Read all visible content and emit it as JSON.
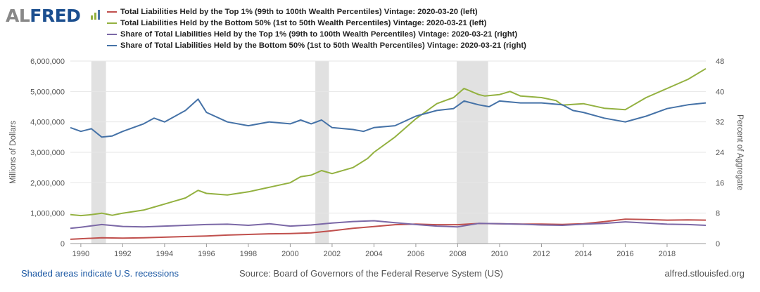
{
  "brand": {
    "logo_prefix": "AL",
    "logo_name": "FRED"
  },
  "legend": [
    {
      "label": "Total Liabilities Held by the Top 1% (99th to 100th Wealth Percentiles) Vintage: 2020-03-20 (left)",
      "color": "#c0504d"
    },
    {
      "label": "Total Liabilities Held by the Bottom 50% (1st to 50th Wealth Percentiles) Vintage: 2020-03-21 (left)",
      "color": "#93b140"
    },
    {
      "label": "Share of Total Liabilities Held by the Top 1% (99th to 100th Wealth Percentiles) Vintage: 2020-03-21 (right)",
      "color": "#7b68a6"
    },
    {
      "label": "Share of Total Liabilities Held by the Bottom 50% (1st to 50th Wealth Percentiles) Vintage: 2020-03-21 (right)",
      "color": "#4572a7"
    }
  ],
  "footer": {
    "recessions_note": "Shaded areas indicate U.S. recessions",
    "source": "Source: Board of Governors of the Federal Reserve System (US)",
    "site": "alfred.stlouisfed.org"
  },
  "chart_data": {
    "type": "line",
    "ylabel_left": "Millions of Dollars",
    "ylabel_right": "Percent of Aggregate",
    "ylim_left": [
      0,
      6000000
    ],
    "ylim_right": [
      0,
      48
    ],
    "yticks_left": [
      "0",
      "1,000,000",
      "2,000,000",
      "3,000,000",
      "4,000,000",
      "5,000,000",
      "6,000,000"
    ],
    "yticks_right": [
      "0",
      "8",
      "16",
      "24",
      "32",
      "40",
      "48"
    ],
    "xlim": [
      1989.5,
      2019.85
    ],
    "xticks": [
      "1990",
      "1992",
      "1994",
      "1996",
      "1998",
      "2000",
      "2002",
      "2004",
      "2006",
      "2008",
      "2010",
      "2012",
      "2014",
      "2016",
      "2018"
    ],
    "grid": true,
    "recessions": [
      [
        1990.5,
        1991.2
      ],
      [
        2001.2,
        2001.85
      ],
      [
        2007.95,
        2009.45
      ]
    ],
    "series": [
      {
        "name": "Total Liabilities Held by the Top 1% (99th to 100th Wealth Percentiles) Vintage: 2020-03-20 (left)",
        "axis": "left",
        "color": "#c0504d",
        "x": [
          1989.5,
          1990,
          1991,
          1992,
          1993,
          1994,
          1995,
          1996,
          1997,
          1998,
          1999,
          2000,
          2001,
          2002,
          2003,
          2004,
          2005,
          2006,
          2007,
          2008,
          2009,
          2010,
          2011,
          2012,
          2013,
          2014,
          2015,
          2016,
          2017,
          2018,
          2019,
          2019.85
        ],
        "y": [
          140000,
          160000,
          190000,
          180000,
          190000,
          210000,
          230000,
          250000,
          280000,
          300000,
          320000,
          330000,
          350000,
          420000,
          500000,
          560000,
          620000,
          640000,
          620000,
          620000,
          660000,
          650000,
          640000,
          640000,
          630000,
          650000,
          720000,
          800000,
          790000,
          770000,
          780000,
          770000
        ]
      },
      {
        "name": "Total Liabilities Held by the Bottom 50% (1st to 50th Wealth Percentiles) Vintage: 2020-03-21 (left)",
        "axis": "left",
        "color": "#93b140",
        "x": [
          1989.5,
          1990,
          1990.5,
          1991,
          1991.5,
          1992,
          1993,
          1993.5,
          1994,
          1995,
          1995.6,
          1996,
          1997,
          1998,
          1999,
          2000,
          2000.5,
          2001,
          2001.5,
          2002,
          2003,
          2003.7,
          2004,
          2005,
          2006,
          2007,
          2007.8,
          2008.3,
          2009,
          2009.3,
          2010,
          2010.5,
          2011,
          2012,
          2012.7,
          2013,
          2014,
          2015,
          2016,
          2017,
          2018,
          2019,
          2019.85
        ],
        "y": [
          950000,
          920000,
          950000,
          1000000,
          930000,
          1000000,
          1100000,
          1200000,
          1300000,
          1500000,
          1750000,
          1650000,
          1600000,
          1700000,
          1850000,
          2000000,
          2200000,
          2250000,
          2400000,
          2300000,
          2500000,
          2800000,
          3000000,
          3500000,
          4100000,
          4600000,
          4800000,
          5100000,
          4900000,
          4850000,
          4900000,
          5000000,
          4850000,
          4800000,
          4700000,
          4550000,
          4600000,
          4450000,
          4400000,
          4800000,
          5100000,
          5400000,
          5750000
        ]
      },
      {
        "name": "Share of Total Liabilities Held by the Top 1% (99th to 100th Wealth Percentiles) Vintage: 2020-03-21 (right)",
        "axis": "right",
        "color": "#7b68a6",
        "x": [
          1989.5,
          1990,
          1991,
          1992,
          1993,
          1994,
          1995,
          1996,
          1997,
          1998,
          1999,
          2000,
          2001,
          2002,
          2003,
          2004,
          2005,
          2006,
          2007,
          2008,
          2009,
          2010,
          2011,
          2012,
          2013,
          2014,
          2015,
          2016,
          2017,
          2018,
          2019,
          2019.85
        ],
        "y": [
          4.0,
          4.3,
          5.0,
          4.5,
          4.4,
          4.6,
          4.8,
          5.0,
          5.1,
          4.8,
          5.2,
          4.6,
          4.9,
          5.4,
          5.8,
          6.0,
          5.5,
          5.0,
          4.6,
          4.4,
          5.3,
          5.2,
          5.1,
          4.9,
          4.8,
          5.1,
          5.3,
          5.7,
          5.4,
          5.1,
          5.0,
          4.8
        ]
      },
      {
        "name": "Share of Total Liabilities Held by the Bottom 50% (1st to 50th Wealth Percentiles) Vintage: 2020-03-21 (right)",
        "axis": "right",
        "color": "#4572a7",
        "x": [
          1989.5,
          1990,
          1990.5,
          1991,
          1991.5,
          1992,
          1993,
          1993.5,
          1994,
          1995,
          1995.6,
          1996,
          1997,
          1998,
          1999,
          2000,
          2000.5,
          2001,
          2001.5,
          2002,
          2003,
          2003.5,
          2004,
          2005,
          2006,
          2007,
          2007.8,
          2008.3,
          2009,
          2009.5,
          2010,
          2011,
          2012,
          2013,
          2013.5,
          2014,
          2015,
          2016,
          2017,
          2018,
          2019,
          2019.85
        ],
        "y": [
          30.5,
          29.5,
          30.2,
          28.0,
          28.3,
          29.5,
          31.5,
          33.0,
          32.0,
          35.0,
          38.0,
          34.5,
          32.0,
          31.0,
          32.0,
          31.5,
          32.5,
          31.5,
          32.5,
          30.5,
          30.0,
          29.5,
          30.5,
          31.0,
          33.5,
          35.0,
          35.5,
          37.5,
          36.5,
          36.0,
          37.5,
          37.0,
          37.0,
          36.5,
          35.0,
          34.5,
          33.0,
          32.0,
          33.5,
          35.5,
          36.5,
          37.0
        ]
      }
    ]
  }
}
